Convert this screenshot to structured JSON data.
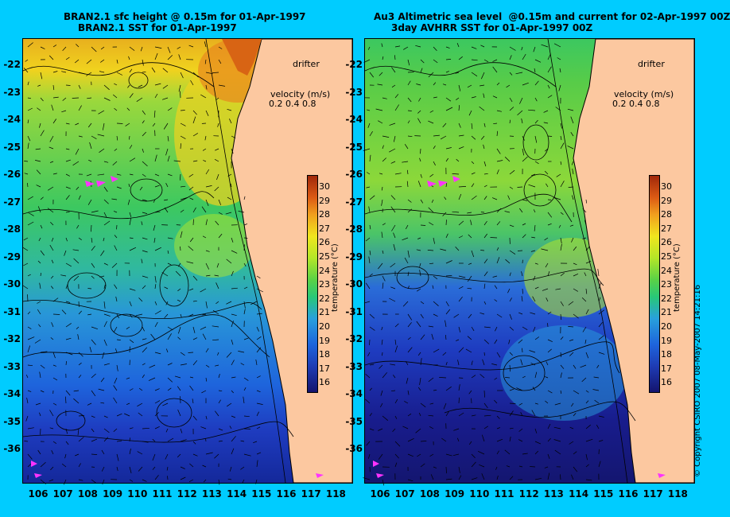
{
  "left_panel": {
    "title_line1": "BRAN2.1 sfc height @ 0.15m for 01-Apr-1997",
    "title_line2": "BRAN2.1 SST for 01-Apr-1997"
  },
  "right_panel": {
    "title_line1": "Au3 Altimetric sea level  @0.15m and current for 02-Apr-1997 00Z",
    "title_line2": "3day AVHRR SST for 01-Apr-1997 00Z"
  },
  "legend": {
    "drifter_label": "drifter",
    "velocity_label": "velocity (m/s)",
    "velocity_scale": "0.2 0.4 0.8"
  },
  "latitude_labels": [
    "-22",
    "-23",
    "-24",
    "-25",
    "-26",
    "-27",
    "-28",
    "-29",
    "-30",
    "-31",
    "-32",
    "-33",
    "-34",
    "-35",
    "-36"
  ],
  "longitude_labels": [
    "106",
    "107",
    "108",
    "109",
    "110",
    "111",
    "112",
    "113",
    "114",
    "115",
    "116",
    "117",
    "118"
  ],
  "colorbar": {
    "ticks": [
      "30",
      "29",
      "28",
      "27",
      "26",
      "25",
      "24",
      "23",
      "22",
      "21",
      "20",
      "19",
      "18",
      "17",
      "16"
    ],
    "unit_label": "temperature (°C)"
  },
  "copyright": "© Copyright CSIRO 2007   08-May-2007 14:21:16",
  "colors": {
    "background": "#00ccff",
    "land": "#fcc8a0",
    "coast": "#000000",
    "drifter": "#ff33ff"
  }
}
